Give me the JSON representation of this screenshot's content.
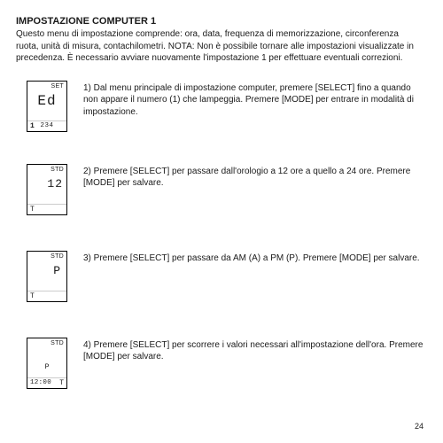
{
  "title": "IMPOSTAZIONE COMPUTER 1",
  "intro": "Questo menu di impostazione comprende: ora, data, frequenza di memorizzazione, circonferenza ruota, unità di misura, contachilometri. NOTA: Non è possibile tornare alle impostazioni visualizzate in precedenza. È necessario avviare nuovamente l'impostazione 1 per effettuare eventuali correzioni.",
  "steps": [
    {
      "device": {
        "top": "SET",
        "main": "Ed",
        "bottom_left": "1",
        "bottom_center": "234",
        "bottom_right": ""
      },
      "text": "1) Dal menu principale di impostazione computer, premere [SELECT] fino a quando non appare il numero (1) che lampeggia. Premere [MODE] per entrare in modalità di impostazione."
    },
    {
      "device": {
        "top": "STD",
        "main": "12",
        "bottom_left": "T",
        "bottom_center": "",
        "bottom_right": ""
      },
      "text": "2) Premere [SELECT] per passare dall'orologio a 12 ore a quello a 24 ore. Premere [MODE] per salvare."
    },
    {
      "device": {
        "top": "STD",
        "main": "P",
        "bottom_left": "T",
        "bottom_center": "",
        "bottom_right": ""
      },
      "text": "3) Premere [SELECT] per passare da AM (A) a PM (P). Premere [MODE] per salvare."
    },
    {
      "device": {
        "top": "STD",
        "main": "",
        "sub": "P",
        "bottom_left": "T",
        "bottom_center": "",
        "bottom_right": "",
        "bottom_time": "12:00"
      },
      "text": "4) Premere [SELECT] per scorrere i valori necessari all'impostazione dell'ora. Premere [MODE] per salvare."
    }
  ],
  "page_number": "24"
}
